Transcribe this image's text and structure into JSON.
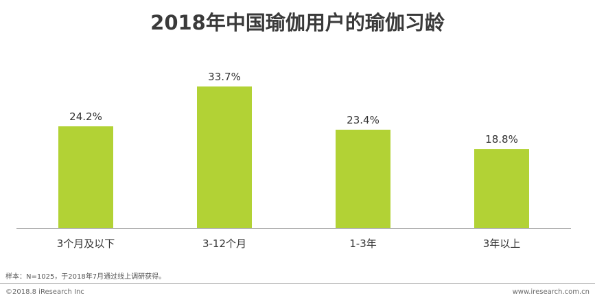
{
  "title": "2018年中国瑜伽用户的瑜伽习龄",
  "chart_data": {
    "type": "bar",
    "title": "2018年中国瑜伽用户的瑜伽习龄",
    "categories": [
      "3个月及以下",
      "3-12个月",
      "1-3年",
      "3年以上"
    ],
    "values": [
      24.2,
      33.7,
      23.4,
      18.8
    ],
    "value_labels": [
      "24.2%",
      "33.7%",
      "23.4%",
      "18.8%"
    ],
    "unit": "%",
    "xlabel": "",
    "ylabel": "",
    "ylim": [
      0,
      33.7
    ],
    "grid": false,
    "bar_color": "#b2d235"
  },
  "footer": {
    "source": "样本：N=1025，于2018年7月通过线上调研获得。",
    "copyright": "©2018.8 iResearch Inc",
    "website": "www.iresearch.com.cn"
  },
  "colors": {
    "axis": "#7f7f7f",
    "text": "#333333",
    "title": "#3a3a3a"
  }
}
